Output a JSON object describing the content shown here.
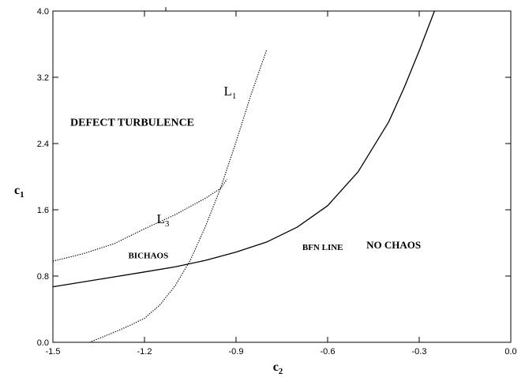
{
  "chart_data": {
    "type": "line",
    "title": "",
    "xlabel": "c",
    "xlabel_sub": "2",
    "ylabel": "c",
    "ylabel_sub": "1",
    "xlim": [
      -1.5,
      0.0
    ],
    "ylim": [
      0.0,
      4.0
    ],
    "grid": false,
    "legend": "none",
    "x_ticks": [
      {
        "value": -1.5,
        "label": "-1.5"
      },
      {
        "value": -1.2,
        "label": "-1.2"
      },
      {
        "value": -0.9,
        "label": "-0.9"
      },
      {
        "value": -0.6,
        "label": "-0.6"
      },
      {
        "value": -0.3,
        "label": "-0.3"
      },
      {
        "value": 0.0,
        "label": "0.0"
      }
    ],
    "y_ticks": [
      {
        "value": 0.0,
        "label": "0.0"
      },
      {
        "value": 0.8,
        "label": "0.8"
      },
      {
        "value": 1.6,
        "label": "1.6"
      },
      {
        "value": 2.4,
        "label": "2.4"
      },
      {
        "value": 3.2,
        "label": "3.2"
      },
      {
        "value": 4.0,
        "label": "4.0"
      }
    ],
    "series": [
      {
        "style": "solid",
        "x": [
          -1.5,
          -1.4,
          -1.3,
          -1.2,
          -1.1,
          -1.0,
          -0.9,
          -0.8,
          -0.7,
          -0.6,
          -0.5,
          -0.4,
          -0.35,
          -0.3,
          -0.25
        ],
        "y": [
          0.67,
          0.73,
          0.79,
          0.85,
          0.91,
          0.99,
          1.09,
          1.21,
          1.39,
          1.65,
          2.06,
          2.66,
          3.07,
          3.52,
          4.0
        ]
      },
      {
        "style": "dotted",
        "x": [
          -1.38,
          -1.3,
          -1.25,
          -1.2,
          -1.15,
          -1.1,
          -1.05,
          -1.0,
          -0.95,
          -0.9,
          -0.85,
          -0.8
        ],
        "y": [
          0.0,
          0.12,
          0.2,
          0.29,
          0.45,
          0.68,
          0.99,
          1.4,
          1.87,
          2.42,
          3.0,
          3.53
        ]
      },
      {
        "style": "dotted",
        "x": [
          -1.5,
          -1.4,
          -1.3,
          -1.2,
          -1.1,
          -1.0,
          -0.95,
          -0.93
        ],
        "y": [
          0.98,
          1.07,
          1.19,
          1.37,
          1.54,
          1.74,
          1.86,
          1.97
        ]
      }
    ],
    "annotations": [
      {
        "text": "DEFECT TURBULENCE",
        "x": -1.5,
        "y": 2.66
      },
      {
        "text": "BICHAOS",
        "x": -1.31,
        "y": 1.06
      },
      {
        "text": "BFN LINE",
        "x": -0.74,
        "y": 1.16
      },
      {
        "text": "NO CHAOS",
        "x": -0.53,
        "y": 1.18
      }
    ],
    "curve_labels": [
      {
        "text": "L",
        "sub": "1",
        "x": -0.94,
        "y": 2.98
      },
      {
        "text": "L",
        "sub": "3",
        "x": -1.16,
        "y": 1.44
      }
    ]
  }
}
